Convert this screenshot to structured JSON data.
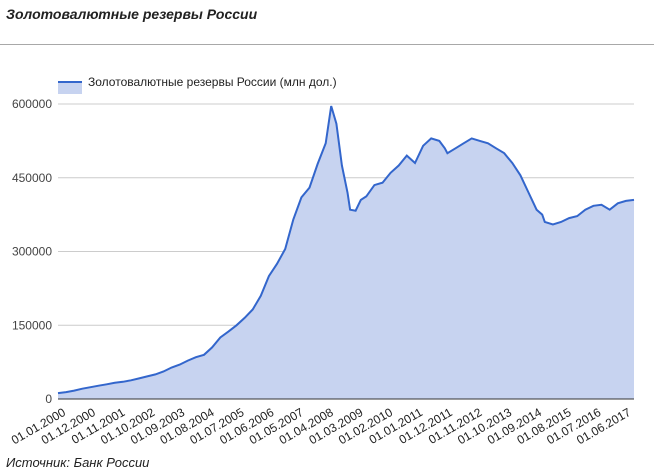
{
  "page": {
    "title": "Золотовалютные резервы России",
    "source": "Источник: Банк России"
  },
  "colors": {
    "line": "#3366cc",
    "area": "#c7d3f0",
    "grid": "#cccccc",
    "axis": "#333333"
  },
  "chart_data": {
    "type": "area",
    "legend": "top-left",
    "grid": true,
    "series": [
      {
        "name": "Золотовалютные резервы России (млн дол.)",
        "x": [
          2000.0,
          2000.25,
          2000.5,
          2000.75,
          2001.0,
          2001.25,
          2001.5,
          2001.75,
          2002.0,
          2002.25,
          2002.5,
          2002.75,
          2003.0,
          2003.25,
          2003.5,
          2003.75,
          2004.0,
          2004.25,
          2004.5,
          2004.75,
          2005.0,
          2005.25,
          2005.5,
          2005.75,
          2006.0,
          2006.25,
          2006.5,
          2006.75,
          2007.0,
          2007.25,
          2007.5,
          2007.75,
          2008.0,
          2008.25,
          2008.42,
          2008.58,
          2008.75,
          2008.92,
          2009.0,
          2009.17,
          2009.33,
          2009.5,
          2009.75,
          2010.0,
          2010.25,
          2010.5,
          2010.75,
          2011.0,
          2011.25,
          2011.5,
          2011.75,
          2011.92,
          2012.0,
          2012.25,
          2012.5,
          2012.75,
          2013.0,
          2013.25,
          2013.5,
          2013.75,
          2014.0,
          2014.25,
          2014.5,
          2014.75,
          2014.92,
          2015.0,
          2015.25,
          2015.5,
          2015.75,
          2016.0,
          2016.25,
          2016.5,
          2016.75,
          2017.0,
          2017.25,
          2017.5,
          2017.75
        ],
        "values": [
          12000,
          14000,
          17000,
          21000,
          24000,
          27000,
          30000,
          33000,
          35000,
          38000,
          42000,
          46000,
          50000,
          56000,
          64000,
          70000,
          78000,
          85000,
          90000,
          105000,
          125000,
          137000,
          150000,
          165000,
          182000,
          210000,
          250000,
          275000,
          305000,
          365000,
          410000,
          430000,
          478000,
          520000,
          596000,
          560000,
          475000,
          420000,
          385000,
          383000,
          405000,
          412000,
          435000,
          440000,
          460000,
          475000,
          495000,
          480000,
          515000,
          530000,
          525000,
          510000,
          500000,
          510000,
          520000,
          530000,
          525000,
          520000,
          510000,
          500000,
          480000,
          455000,
          420000,
          385000,
          375000,
          360000,
          355000,
          360000,
          368000,
          372000,
          385000,
          393000,
          395000,
          385000,
          398000,
          403000,
          405000
        ]
      }
    ],
    "ylim": [
      0,
      600000
    ],
    "yticks": [
      "0",
      "150000",
      "300000",
      "450000",
      "600000"
    ],
    "xticks": [
      "01.01.2000",
      "01.12.2000",
      "01.11.2001",
      "01.10.2002",
      "01.09.2003",
      "01.08.2004",
      "01.07.2005",
      "01.06.2006",
      "01.05.2007",
      "01.04.2008",
      "01.03.2009",
      "01.02.2010",
      "01.01.2011",
      "01.12.2011",
      "01.11.2012",
      "01.10.2013",
      "01.09.2014",
      "01.08.2015",
      "01.07.2016",
      "01.06.2017"
    ],
    "xticks_pos": [
      2000.0,
      2000.92,
      2001.83,
      2002.75,
      2003.67,
      2004.58,
      2005.5,
      2006.42,
      2007.33,
      2008.25,
      2009.17,
      2010.08,
      2011.0,
      2011.92,
      2012.83,
      2013.75,
      2014.67,
      2015.58,
      2016.5,
      2017.42
    ],
    "xlim": [
      2000.0,
      2017.75
    ]
  }
}
